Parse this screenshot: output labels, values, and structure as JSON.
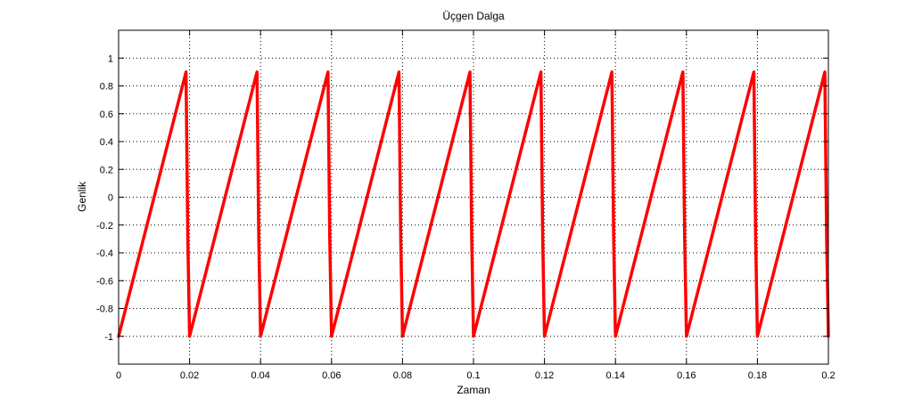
{
  "chart_data": {
    "type": "line",
    "title": "Üçgen Dalga",
    "xlabel": "Zaman",
    "ylabel": "Genlik",
    "xlim": [
      0,
      0.2
    ],
    "ylim": [
      -1.2,
      1.2
    ],
    "xticks": [
      0,
      0.02,
      0.04,
      0.06,
      0.08,
      0.1,
      0.12,
      0.14,
      0.16,
      0.18,
      0.2
    ],
    "xtick_labels": [
      "0",
      "0.02",
      "0.04",
      "0.06",
      "0.08",
      "0.1",
      "0.12",
      "0.14",
      "0.16",
      "0.18",
      "0.2"
    ],
    "yticks": [
      -1,
      -0.8,
      -0.6,
      -0.4,
      -0.2,
      0,
      0.2,
      0.4,
      0.6,
      0.8,
      1
    ],
    "ytick_labels": [
      "-1",
      "-0.8",
      "-0.6",
      "-0.4",
      "-0.2",
      "0",
      "0.2",
      "0.4",
      "0.6",
      "0.8",
      "1"
    ],
    "grid": true,
    "grid_style": "dotted",
    "series": [
      {
        "color": "#ff0000",
        "x": [
          0,
          0.019,
          0.0195,
          0.02,
          0.039,
          0.0395,
          0.04,
          0.059,
          0.0595,
          0.06,
          0.079,
          0.0795,
          0.08,
          0.099,
          0.0995,
          0.1,
          0.119,
          0.1195,
          0.12,
          0.139,
          0.1395,
          0.14,
          0.159,
          0.1595,
          0.16,
          0.179,
          0.1795,
          0.18,
          0.199,
          0.1995,
          0.2
        ],
        "y": [
          -1,
          0.9,
          -0.3,
          -1,
          0.9,
          -0.3,
          -1,
          0.9,
          -0.3,
          -1,
          0.9,
          -0.3,
          -1,
          0.9,
          -0.3,
          -1,
          0.9,
          -0.3,
          -1,
          0.9,
          -0.3,
          -1,
          0.9,
          -0.3,
          -1,
          0.9,
          -0.3,
          -1,
          0.9,
          -0.3,
          -1
        ]
      }
    ]
  }
}
